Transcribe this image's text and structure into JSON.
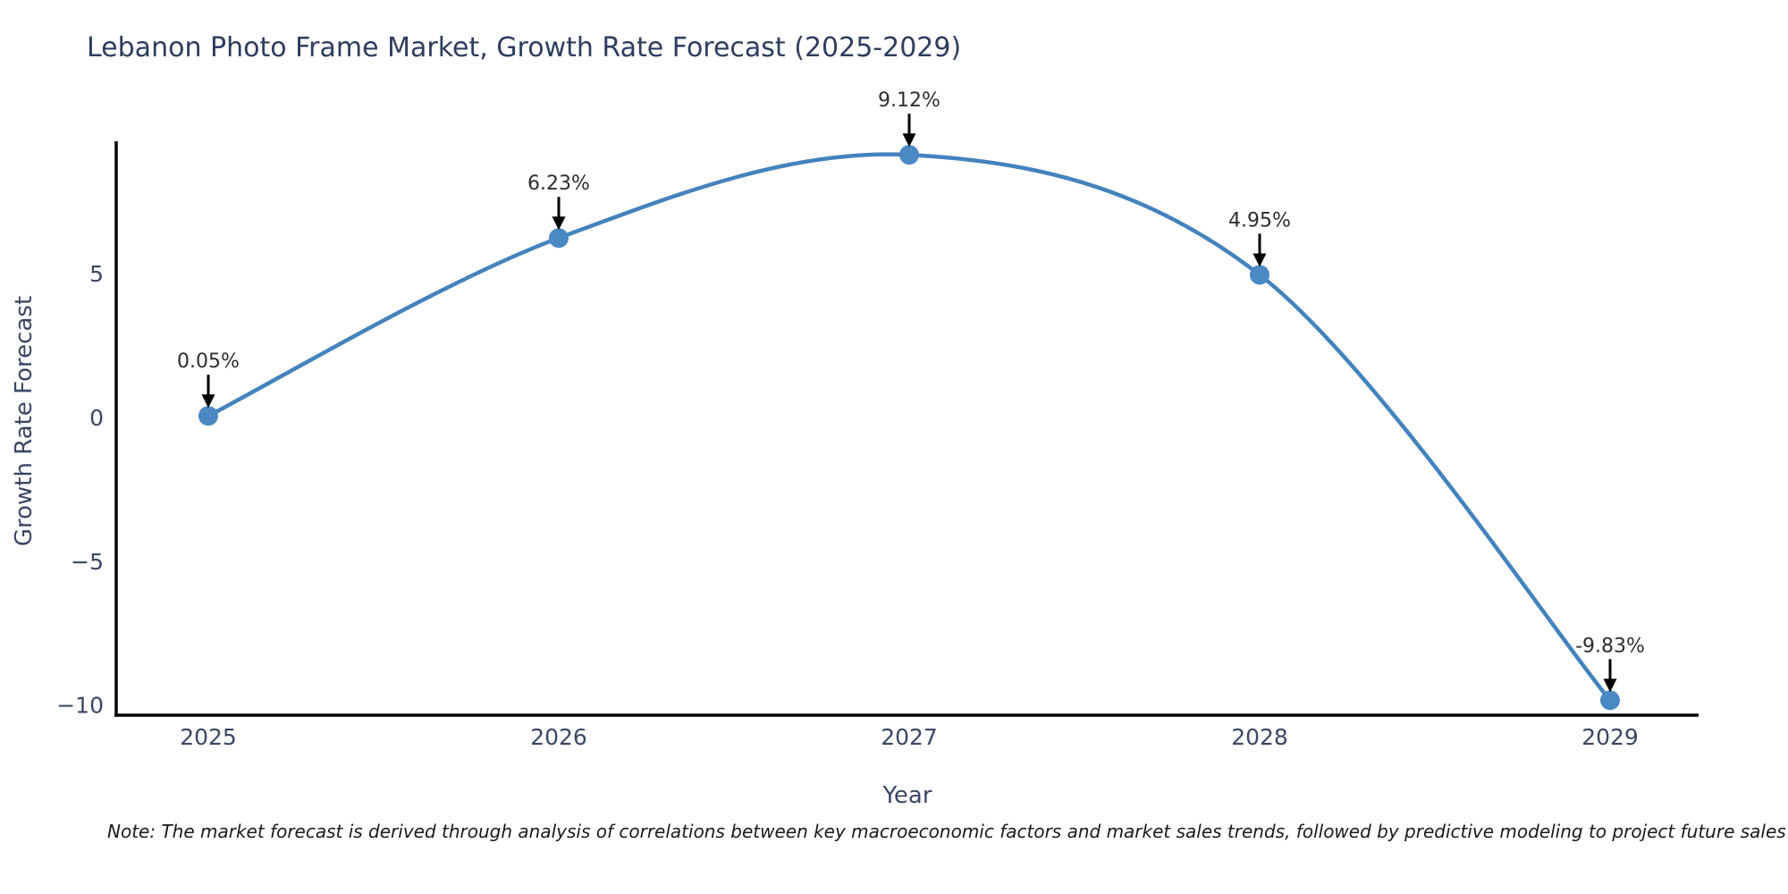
{
  "chart_data": {
    "type": "line",
    "title": "Lebanon Photo Frame Market, Growth Rate Forecast (2025-2029)",
    "xlabel": "Year",
    "ylabel": "Growth Rate Forecast",
    "categories": [
      "2025",
      "2026",
      "2027",
      "2028",
      "2029"
    ],
    "series": [
      {
        "name": "Growth Rate Forecast",
        "values": [
          0.05,
          6.23,
          9.12,
          4.95,
          -9.83
        ],
        "point_labels": [
          "0.05%",
          "6.23%",
          "9.12%",
          "4.95%",
          "-9.83%"
        ]
      }
    ],
    "ylim": [
      -10.35,
      9.53
    ],
    "yticks": [
      5,
      0,
      -5,
      -10
    ],
    "ytick_labels": [
      "5",
      "0",
      "−5",
      "−10"
    ],
    "grid": false,
    "legend": false,
    "line_color": "#4383bd",
    "marker_color": "#4a89c4",
    "axis_color": "#000000",
    "arrow_color": "#000000"
  },
  "note": "Note: The market forecast is derived through analysis of correlations between key macroeconomic factors and market sales trends, followed by predictive modeling to project future sales"
}
